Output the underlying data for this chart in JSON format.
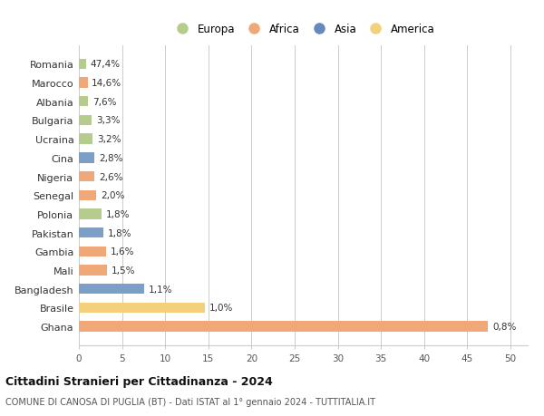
{
  "categories": [
    "Romania",
    "Marocco",
    "Albania",
    "Bulgaria",
    "Ucraina",
    "Cina",
    "Nigeria",
    "Senegal",
    "Polonia",
    "Pakistan",
    "Gambia",
    "Mali",
    "Bangladesh",
    "Brasile",
    "Ghana"
  ],
  "values": [
    47.4,
    14.6,
    7.6,
    3.3,
    3.2,
    2.8,
    2.6,
    2.0,
    1.8,
    1.8,
    1.6,
    1.5,
    1.1,
    1.0,
    0.8
  ],
  "labels": [
    "47,4%",
    "14,6%",
    "7,6%",
    "3,3%",
    "3,2%",
    "2,8%",
    "2,6%",
    "2,0%",
    "1,8%",
    "1,8%",
    "1,6%",
    "1,5%",
    "1,1%",
    "1,0%",
    "0,8%"
  ],
  "colors": [
    "#b5cc8e",
    "#f0a878",
    "#b5cc8e",
    "#b5cc8e",
    "#b5cc8e",
    "#7b9fc7",
    "#f0a878",
    "#f0a878",
    "#b5cc8e",
    "#7b9fc7",
    "#f0a878",
    "#f0a878",
    "#7b9fc7",
    "#f5d07a",
    "#f0a878"
  ],
  "legend": [
    {
      "label": "Europa",
      "color": "#b5cc8e"
    },
    {
      "label": "Africa",
      "color": "#f0a878"
    },
    {
      "label": "Asia",
      "color": "#6688bb"
    },
    {
      "label": "America",
      "color": "#f5d07a"
    }
  ],
  "xlim": [
    0,
    52
  ],
  "xticks": [
    0,
    5,
    10,
    15,
    20,
    25,
    30,
    35,
    40,
    45,
    50
  ],
  "title": "Cittadini Stranieri per Cittadinanza - 2024",
  "subtitle": "COMUNE DI CANOSA DI PUGLIA (BT) - Dati ISTAT al 1° gennaio 2024 - TUTTITALIA.IT",
  "background_color": "#ffffff",
  "grid_color": "#cccccc"
}
